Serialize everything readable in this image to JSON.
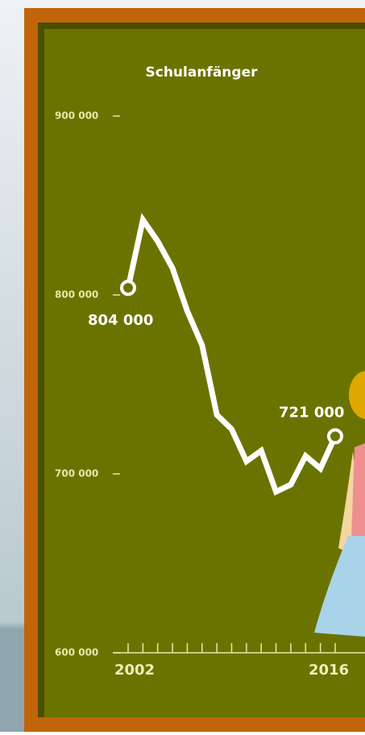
{
  "chart_data": {
    "type": "line",
    "title": "Schulanfänger",
    "x": [
      2002,
      2003,
      2004,
      2005,
      2006,
      2007,
      2008,
      2009,
      2010,
      2011,
      2012,
      2013,
      2014,
      2015,
      2016
    ],
    "series": [
      {
        "name": "Schulanfänger",
        "color": "#ffffff",
        "values": [
          804000,
          842000,
          830000,
          815000,
          791000,
          772000,
          733000,
          725000,
          707000,
          713000,
          690000,
          694000,
          710000,
          703000,
          721000
        ],
        "value_labels": [
          "804 000",
          null,
          null,
          null,
          null,
          null,
          null,
          null,
          null,
          null,
          null,
          null,
          null,
          null,
          "721 000"
        ]
      }
    ],
    "xticks": [
      2002,
      2016
    ],
    "ylim": [
      600000,
      900000
    ],
    "yticks": [
      {
        "value": 600000,
        "label": "600 000"
      },
      {
        "value": 700000,
        "label": "700 000"
      },
      {
        "value": 800000,
        "label": "800 000"
      },
      {
        "value": 900000,
        "label": "900 000"
      }
    ]
  }
}
